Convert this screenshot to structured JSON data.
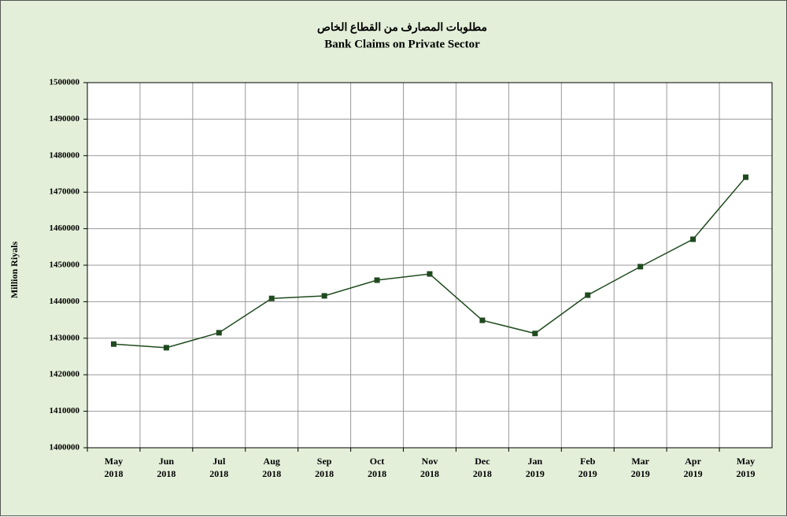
{
  "chart_data": {
    "type": "line",
    "title": "مطلوبات المصارف من القطاع الخاص",
    "subtitle": "Bank Claims on Private Sector",
    "y_label": "Million Riyals",
    "categories": [
      "May 2018",
      "Jun 2018",
      "Jul 2018",
      "Aug 2018",
      "Sep 2018",
      "Oct 2018",
      "Nov 2018",
      "Dec 2018",
      "Jan 2019",
      "Feb 2019",
      "Mar 2019",
      "Apr 2019",
      "May 2019"
    ],
    "series": [
      {
        "name": "Bank Claims on Private Sector",
        "color": "#1f4a1f",
        "values": [
          1428400,
          1427400,
          1431500,
          1440900,
          1441600,
          1445900,
          1447600,
          1434900,
          1431300,
          1441800,
          1449600,
          1457100,
          1474100
        ]
      }
    ],
    "ylim": [
      1400000,
      1500000
    ],
    "yticks": [
      1400000,
      1410000,
      1420000,
      1430000,
      1440000,
      1450000,
      1460000,
      1470000,
      1480000,
      1490000,
      1500000
    ],
    "grid": true
  }
}
